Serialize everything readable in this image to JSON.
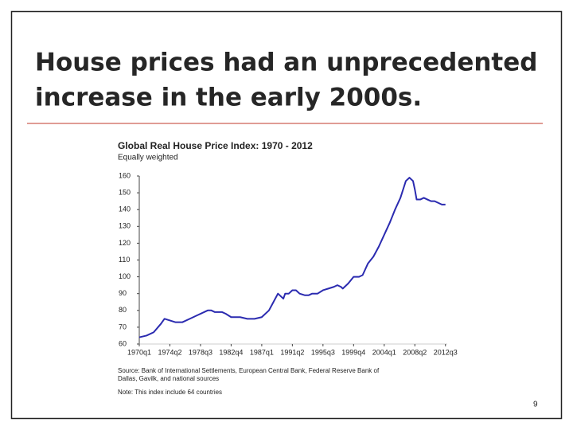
{
  "slide": {
    "title_lines": [
      "House prices had an unprecedented",
      "increase in the early 2000s."
    ],
    "page_number": "9"
  },
  "chart_data": {
    "type": "line",
    "title": "Global Real House Price Index: 1970 - 2012",
    "subtitle": "Equally weighted",
    "source": [
      "Source: Bank of International Settlements, European Central Bank, Federal Reserve Bank of",
      "Dallas, Gavilk, and national sources"
    ],
    "note": "Note: This index include 64 countries",
    "series": [
      {
        "name": "Global Real House Price Index",
        "color": "#2b2bb0",
        "x": [
          "1970q1",
          "1971q1",
          "1972q1",
          "1973q1",
          "1973q3",
          "1974q2",
          "1975q1",
          "1976q1",
          "1977q1",
          "1978q1",
          "1979q1",
          "1979q3",
          "1980q1",
          "1980q3",
          "1981q1",
          "1981q3",
          "1982q1",
          "1982q4",
          "1983q2",
          "1984q1",
          "1985q1",
          "1986q1",
          "1987q1",
          "1988q1",
          "1988q3",
          "1989q2",
          "1989q4",
          "1990q1",
          "1990q2",
          "1990q4",
          "1991q2",
          "1991q4",
          "1992q2",
          "1993q1",
          "1993q3",
          "1994q1",
          "1994q4",
          "1995q3",
          "1996q2",
          "1997q1",
          "1997q3",
          "1998q1",
          "1998q2",
          "1999q1",
          "1999q4",
          "2000q3",
          "2001q1",
          "2001q4",
          "2002q3",
          "2003q2",
          "2004q1",
          "2004q4",
          "2005q3",
          "2006q2",
          "2007q1",
          "2007q3",
          "2008q1",
          "2008q2",
          "2008q3",
          "2009q1",
          "2009q3",
          "2010q1",
          "2010q3",
          "2011q1",
          "2011q3",
          "2012q1",
          "2012q3"
        ],
        "values": [
          64,
          65,
          67,
          72,
          75,
          74,
          73,
          73,
          75,
          77,
          79,
          80,
          80,
          79,
          79,
          79,
          78,
          76,
          76,
          76,
          75,
          75,
          76,
          80,
          84,
          90,
          88,
          87,
          90,
          90,
          92,
          92,
          90,
          89,
          89,
          90,
          90,
          92,
          93,
          94,
          95,
          94,
          93,
          96,
          100,
          100,
          101,
          108,
          112,
          118,
          125,
          132,
          140,
          147,
          157,
          159,
          157,
          152,
          146,
          146,
          147,
          146,
          145,
          145,
          144,
          143,
          143
        ]
      }
    ],
    "xlim": [
      "1970q1",
      "2012q4"
    ],
    "xticks": [
      "1970q1",
      "1974q2",
      "1978q3",
      "1982q4",
      "1987q1",
      "1991q2",
      "1995q3",
      "1999q4",
      "2004q1",
      "2008q2",
      "2012q3"
    ],
    "ylim": [
      60,
      160
    ],
    "yticks": [
      60,
      70,
      80,
      90,
      100,
      110,
      120,
      130,
      140,
      150,
      160
    ],
    "grid": false
  }
}
